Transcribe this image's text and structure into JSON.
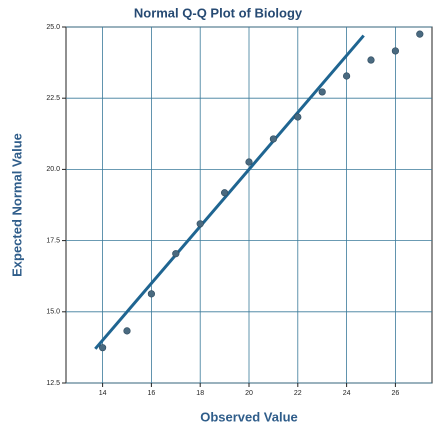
{
  "chart_data": {
    "type": "scatter",
    "title": "Normal Q-Q Plot of Biology",
    "x_label": "Observed Value",
    "y_label": "Expected Normal Value",
    "series": [
      {
        "x": [
          14,
          15,
          16,
          17,
          18,
          19,
          20,
          21,
          22,
          23,
          24,
          25,
          26,
          27
        ],
        "values": [
          13.74,
          14.33,
          15.63,
          17.04,
          18.09,
          19.18,
          20.26,
          21.07,
          21.84,
          22.72,
          23.28,
          23.84,
          24.16,
          24.75
        ],
        "color": "#4a6a80"
      }
    ],
    "reference_line": {
      "x": [
        13.7,
        24.7
      ],
      "y": [
        13.7,
        24.7
      ],
      "color": "#1f6591"
    },
    "xlim": [
      12.5,
      27.5
    ],
    "xticks": [
      14,
      16,
      18,
      20,
      22,
      24,
      26
    ],
    "ylim": [
      12.5,
      25
    ],
    "yticks": [
      12.5,
      {
        "value": 15,
        "label": "15.0"
      },
      17.5,
      {
        "value": 20,
        "label": "20.0"
      },
      22.5,
      {
        "value": 25,
        "label": "25.0"
      }
    ],
    "grid": true
  }
}
